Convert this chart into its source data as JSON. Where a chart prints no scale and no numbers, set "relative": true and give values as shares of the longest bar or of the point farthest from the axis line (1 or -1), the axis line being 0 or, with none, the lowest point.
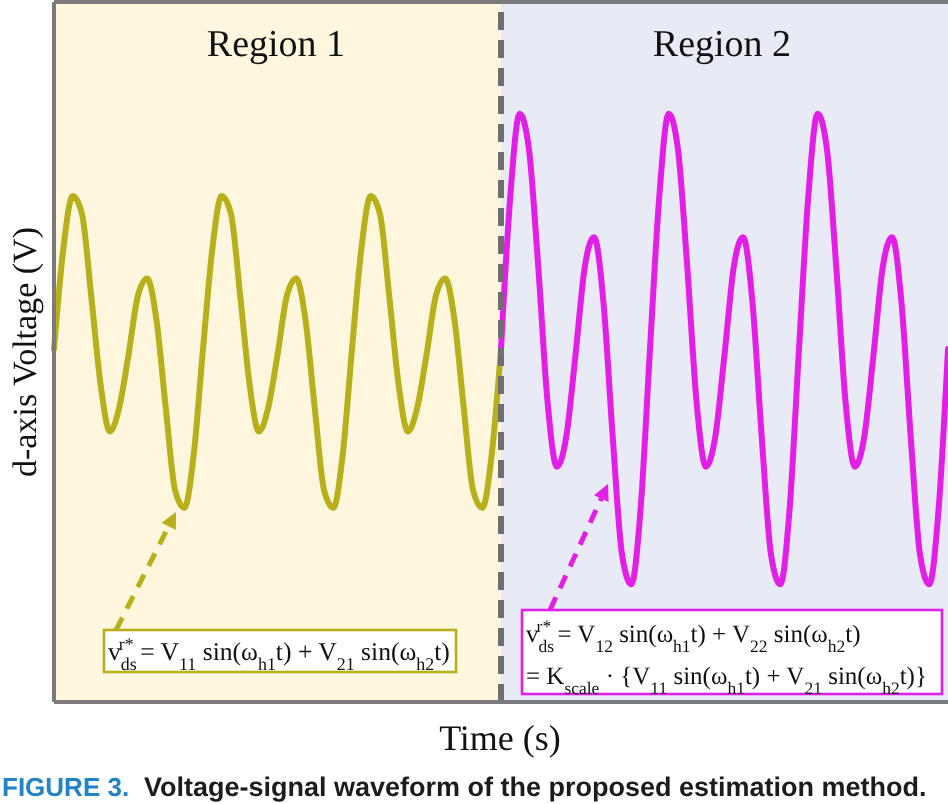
{
  "chart_data": {
    "type": "line",
    "xlabel": "Time (s)",
    "ylabel": "d-axis Voltage (V)",
    "relative": true,
    "marker": "none",
    "line_style": "solid",
    "categories": [
      null,
      null,
      null,
      null,
      null,
      null,
      null,
      null,
      null,
      null,
      null,
      null,
      null,
      null,
      null,
      null,
      null,
      null,
      null,
      null,
      null,
      null,
      null,
      null,
      null,
      null,
      null,
      null,
      null,
      null,
      null,
      null,
      null,
      null,
      null,
      null,
      null,
      null,
      null,
      null,
      null,
      null,
      null,
      null,
      null,
      null,
      null,
      null,
      null,
      null,
      null,
      null,
      null,
      null,
      null,
      null,
      null,
      null,
      null,
      null,
      null,
      null,
      null,
      null,
      null,
      null,
      null,
      null,
      null,
      null,
      null,
      null,
      null,
      null,
      null,
      null,
      null,
      null,
      null,
      null,
      null,
      null,
      null,
      null,
      null,
      null,
      null,
      null,
      null,
      null,
      null,
      null,
      null,
      null,
      null,
      null,
      null
    ],
    "series": [
      {
        "color": "#b8b01a",
        "values": [
          0.6,
          0.77,
          0.86,
          0.83,
          0.69,
          0.54,
          0.46,
          0.5,
          0.59,
          0.69,
          0.72,
          0.65,
          0.5,
          0.36,
          0.33,
          0.42,
          0.6,
          0.77,
          0.86,
          0.83,
          0.69,
          0.54,
          0.46,
          0.5,
          0.59,
          0.69,
          0.72,
          0.65,
          0.5,
          0.36,
          0.33,
          0.42,
          0.6,
          0.77,
          0.86,
          0.83,
          0.69,
          0.54,
          0.46,
          0.5,
          0.59,
          0.69,
          0.72,
          0.65,
          0.5,
          0.36,
          0.33,
          0.42,
          0.6,
          null,
          null,
          null,
          null,
          null,
          null,
          null,
          null,
          null,
          null,
          null,
          null,
          null,
          null,
          null,
          null,
          null,
          null,
          null,
          null,
          null,
          null,
          null,
          null,
          null,
          null,
          null,
          null,
          null,
          null,
          null,
          null,
          null,
          null,
          null,
          null,
          null,
          null,
          null,
          null,
          null,
          null,
          null,
          null,
          null,
          null,
          null,
          null
        ]
      },
      {
        "color": "#e21fe6",
        "values": [
          null,
          null,
          null,
          null,
          null,
          null,
          null,
          null,
          null,
          null,
          null,
          null,
          null,
          null,
          null,
          null,
          null,
          null,
          null,
          null,
          null,
          null,
          null,
          null,
          null,
          null,
          null,
          null,
          null,
          null,
          null,
          null,
          null,
          null,
          null,
          null,
          null,
          null,
          null,
          null,
          null,
          null,
          null,
          null,
          null,
          null,
          null,
          null,
          0.6,
          0.86,
          1.0,
          0.94,
          0.74,
          0.51,
          0.4,
          0.45,
          0.59,
          0.74,
          0.79,
          0.68,
          0.45,
          0.25,
          0.2,
          0.33,
          0.6,
          0.86,
          1.0,
          0.94,
          0.74,
          0.51,
          0.4,
          0.45,
          0.59,
          0.74,
          0.79,
          0.68,
          0.45,
          0.25,
          0.2,
          0.33,
          0.6,
          0.86,
          1.0,
          0.94,
          0.74,
          0.51,
          0.4,
          0.45,
          0.59,
          0.74,
          0.79,
          0.68,
          0.45,
          0.25,
          0.2,
          0.33,
          0.6
        ]
      }
    ],
    "annotations": [
      "Region 1",
      "Region 2",
      "v$_{ds}$$^{r*}$ = V$_{11}$ sin(ω$_{h1}$t) + V$_{21}$ sin(ω$_{h2}$t)",
      "v$_{ds}$$^{r*}$ = V$_{12}$ sin(ω$_{h1}$t) + V$_{22}$ sin(ω$_{h2}$t)\n= K$_{scale}$ · {V$_{11}$ sin(ω$_{h1}$t) + V$_{21}$ sin(ω$_{h2}$t)}",
      "FIGURE 3.",
      "Voltage-signal waveform of the proposed estimation method."
    ]
  }
}
